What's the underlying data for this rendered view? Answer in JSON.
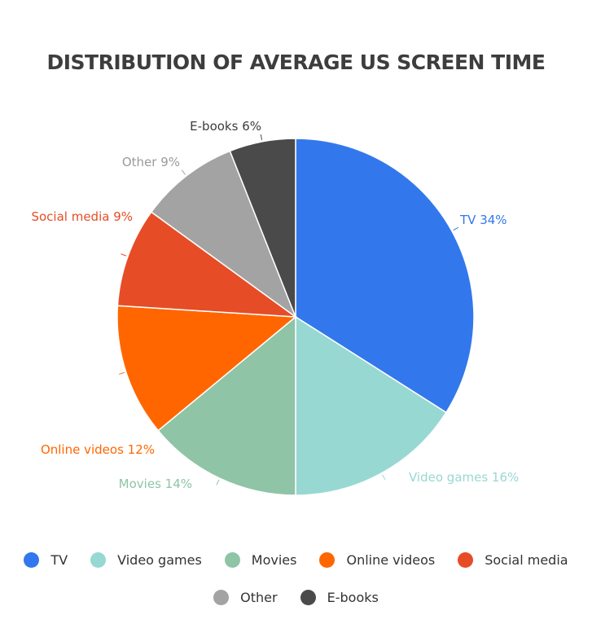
{
  "chart_data": {
    "type": "pie",
    "title": "DISTRIBUTION OF AVERAGE US SCREEN TIME",
    "slices": [
      {
        "name": "TV",
        "value": 34,
        "label": "TV 34%",
        "color": "#3278ec"
      },
      {
        "name": "Video games",
        "value": 16,
        "label": "Video games 16%",
        "color": "#98d8d2"
      },
      {
        "name": "Movies",
        "value": 14,
        "label": "Movies 14%",
        "color": "#8fc4a6"
      },
      {
        "name": "Online videos",
        "value": 12,
        "label": "Online videos 12%",
        "color": "#ff6600"
      },
      {
        "name": "Social media",
        "value": 9,
        "label": "Social media 9%",
        "color": "#e64d26"
      },
      {
        "name": "Other",
        "value": 9,
        "label": "Other 9%",
        "color": "#a3a3a3"
      },
      {
        "name": "E-books",
        "value": 6,
        "label": "E-books 6%",
        "color": "#4a4a4a"
      }
    ],
    "legend_position": "bottom"
  }
}
